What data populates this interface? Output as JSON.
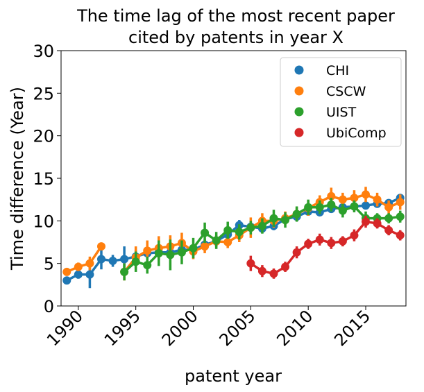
{
  "chart_data": {
    "type": "pointplot",
    "title": [
      "The time lag of the most recent paper",
      "cited by patents in year X"
    ],
    "xlabel": "patent year",
    "ylabel": "Time difference (Year)",
    "x": [
      1989,
      1990,
      1991,
      1992,
      1993,
      1994,
      1995,
      1996,
      1997,
      1998,
      1999,
      2000,
      2001,
      2002,
      2003,
      2004,
      2005,
      2006,
      2007,
      2008,
      2009,
      2010,
      2011,
      2012,
      2013,
      2014,
      2015,
      2016,
      2017,
      2018
    ],
    "xlim": [
      1988.5,
      2018.5
    ],
    "xticks": [
      1990,
      1995,
      2000,
      2005,
      2010,
      2015
    ],
    "ylim": [
      0,
      30
    ],
    "yticks": [
      0,
      5,
      10,
      15,
      20,
      25,
      30
    ],
    "legend": "upper right",
    "series": [
      {
        "name": "CHI",
        "color": "#1f77b4",
        "values": [
          3.0,
          3.7,
          3.7,
          5.5,
          5.3,
          5.5,
          5.8,
          6.2,
          6.3,
          6.3,
          6.6,
          6.6,
          7.2,
          7.6,
          8.4,
          9.5,
          9.3,
          9.1,
          9.4,
          10.2,
          10.5,
          11.1,
          11.0,
          11.4,
          11.6,
          11.7,
          11.8,
          12.0,
          12.1,
          12.7
        ],
        "errors": [
          0.3,
          0.5,
          1.6,
          1.2,
          0.7,
          1.5,
          0.8,
          0.8,
          0.9,
          0.7,
          0.7,
          0.7,
          0.6,
          0.6,
          0.6,
          0.6,
          0.5,
          0.5,
          0.5,
          0.5,
          0.4,
          0.4,
          0.4,
          0.4,
          0.4,
          0.4,
          0.4,
          0.4,
          0.4,
          0.4
        ]
      },
      {
        "name": "CSCW",
        "color": "#ff7f0e",
        "values": [
          4.0,
          4.6,
          5.0,
          7.0,
          null,
          4.0,
          5.7,
          6.5,
          6.8,
          7.0,
          7.4,
          6.4,
          7.0,
          7.6,
          7.5,
          8.3,
          9.2,
          10.0,
          10.0,
          10.3,
          10.8,
          11.5,
          12.2,
          12.9,
          12.5,
          12.7,
          13.1,
          12.5,
          11.6,
          12.2
        ],
        "errors": [
          0.4,
          0.5,
          0.8,
          0.4,
          null,
          1.0,
          1.3,
          1.2,
          1.4,
          1.3,
          1.2,
          0.9,
          0.8,
          0.7,
          0.7,
          0.8,
          1.2,
          0.9,
          0.8,
          0.8,
          0.8,
          0.9,
          0.8,
          1.0,
          0.8,
          0.9,
          0.9,
          0.8,
          0.8,
          0.9
        ]
      },
      {
        "name": "UIST",
        "color": "#2ca02c",
        "values": [
          null,
          null,
          null,
          null,
          null,
          4.0,
          5.2,
          4.8,
          6.2,
          6.0,
          6.3,
          6.8,
          8.6,
          7.7,
          8.9,
          8.7,
          9.2,
          9.4,
          10.3,
          10.1,
          10.8,
          11.6,
          11.6,
          11.9,
          11.2,
          11.7,
          10.3,
          10.3,
          10.3,
          10.5
        ],
        "errors": [
          null,
          null,
          null,
          null,
          null,
          1.0,
          1.2,
          1.0,
          1.5,
          1.8,
          1.4,
          1.2,
          1.2,
          1.0,
          1.0,
          0.9,
          0.8,
          0.9,
          1.0,
          0.9,
          0.9,
          0.9,
          0.8,
          0.8,
          0.8,
          0.7,
          0.8,
          0.6,
          0.6,
          0.7
        ]
      },
      {
        "name": "UbiComp",
        "color": "#d62728",
        "values": [
          null,
          null,
          null,
          null,
          null,
          null,
          null,
          null,
          null,
          null,
          null,
          null,
          null,
          null,
          null,
          null,
          5.0,
          4.1,
          3.8,
          4.6,
          6.3,
          7.3,
          7.8,
          7.4,
          7.6,
          8.3,
          9.9,
          9.7,
          8.9,
          8.3
        ],
        "errors": [
          null,
          null,
          null,
          null,
          null,
          null,
          null,
          null,
          null,
          null,
          null,
          null,
          null,
          null,
          null,
          null,
          0.9,
          0.7,
          0.6,
          0.6,
          0.7,
          0.6,
          0.7,
          0.7,
          0.6,
          0.7,
          0.7,
          0.6,
          0.6,
          0.6
        ]
      }
    ]
  }
}
